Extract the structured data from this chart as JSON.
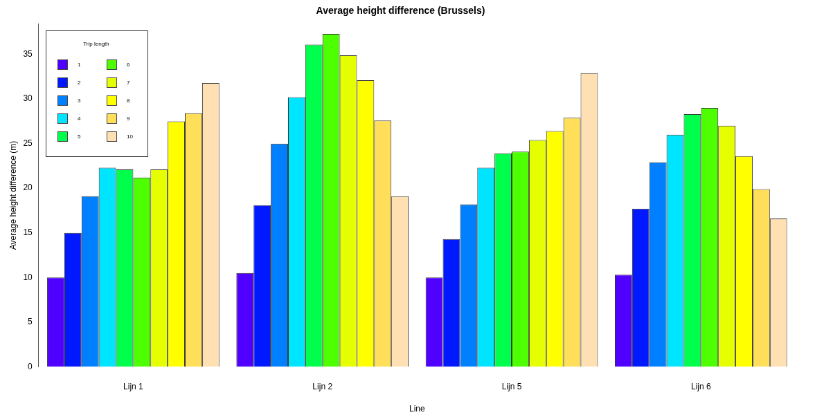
{
  "chart_data": {
    "type": "bar",
    "title": "Average height difference (Brussels)",
    "xlabel": "Line",
    "ylabel": "Average height difference (m)",
    "legend_title": "Trip length",
    "legend": "top left",
    "categories": [
      "Lijn 1",
      "Lijn 2",
      "Lijn 5",
      "Lijn 6"
    ],
    "ylim": [
      0,
      38.4
    ],
    "yticks": [
      0,
      5,
      10,
      15,
      20,
      25,
      30,
      35
    ],
    "series": [
      {
        "name": "1",
        "color": "#5000ff",
        "values": [
          10.0,
          10.5,
          10.0,
          10.3
        ]
      },
      {
        "name": "2",
        "color": "#0019ff",
        "values": [
          15.0,
          18.1,
          14.3,
          17.7
        ]
      },
      {
        "name": "3",
        "color": "#0080ff",
        "values": [
          19.1,
          25.0,
          18.2,
          22.9
        ]
      },
      {
        "name": "4",
        "color": "#00e5ff",
        "values": [
          22.3,
          30.2,
          22.3,
          26.0
        ]
      },
      {
        "name": "5",
        "color": "#00ff4d",
        "values": [
          22.1,
          36.1,
          23.9,
          28.3
        ]
      },
      {
        "name": "6",
        "color": "#4dff00",
        "values": [
          21.2,
          37.3,
          24.1,
          29.0
        ]
      },
      {
        "name": "7",
        "color": "#e6ff00",
        "values": [
          22.1,
          34.9,
          25.4,
          27.0
        ]
      },
      {
        "name": "8",
        "color": "#ffff00",
        "values": [
          27.5,
          32.1,
          26.4,
          23.6
        ]
      },
      {
        "name": "9",
        "color": "#ffdf5a",
        "values": [
          28.4,
          27.6,
          27.9,
          19.9
        ]
      },
      {
        "name": "10",
        "color": "#ffe0b3",
        "values": [
          31.8,
          19.1,
          32.9,
          16.6
        ]
      }
    ]
  }
}
